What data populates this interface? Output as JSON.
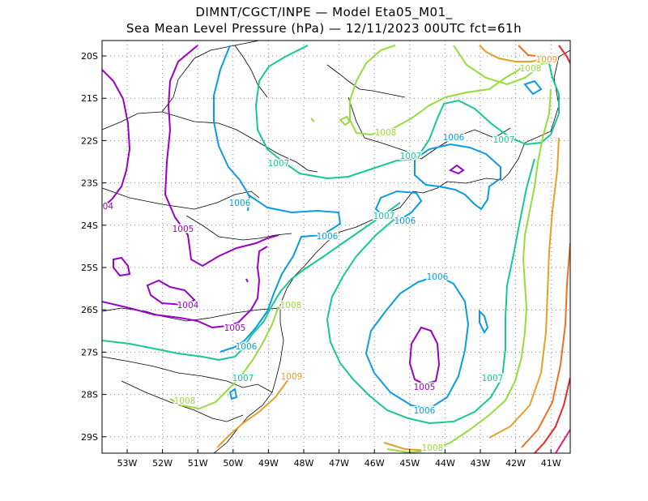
{
  "title": {
    "line1": "DIMNT/CGCT/INPE —  Model Eta05_M01_",
    "line2": "Sea Mean Level Pressure (hPa) — 12/11/2023 00UTC fct=61h"
  },
  "axes": {
    "x_ticks": [
      "53W",
      "52W",
      "51W",
      "50W",
      "49W",
      "48W",
      "47W",
      "46W",
      "45W",
      "44W",
      "43W",
      "42W",
      "41W"
    ],
    "y_ticks": [
      "20S",
      "21S",
      "22S",
      "23S",
      "24S",
      "25S",
      "26S",
      "27S",
      "28S",
      "29S"
    ]
  },
  "contour_colors": {
    "1004": "#9a00c8",
    "1005": "#9a00c8",
    "1006": "#0a9be6",
    "1007": "#16c896",
    "1008": "#96dc3c",
    "1009": "#e6a028",
    "1010": "#f06e28",
    "1011": "#e62828",
    "1012": "#e61e6e"
  },
  "contour_labels": [
    {
      "text": "1009",
      "color_key": "1009"
    },
    {
      "text": "1008",
      "color_key": "1008"
    },
    {
      "text": "1008",
      "color_key": "1008"
    },
    {
      "text": "1007",
      "color_key": "1007"
    },
    {
      "text": "1006",
      "color_key": "1006"
    },
    {
      "text": "1007",
      "color_key": "1007"
    },
    {
      "text": "1007",
      "color_key": "1007"
    },
    {
      "text": "1006",
      "color_key": "1006"
    },
    {
      "text": "004",
      "color_key": "1004"
    },
    {
      "text": "1005",
      "color_key": "1005"
    },
    {
      "text": "1007",
      "color_key": "1007"
    },
    {
      "text": "1006",
      "color_key": "1006"
    },
    {
      "text": "1006",
      "color_key": "1006"
    },
    {
      "text": "1006",
      "color_key": "1006"
    },
    {
      "text": "1008",
      "color_key": "1008"
    },
    {
      "text": "1004",
      "color_key": "1004"
    },
    {
      "text": "1005",
      "color_key": "1005"
    },
    {
      "text": "1006",
      "color_key": "1006"
    },
    {
      "text": "1007",
      "color_key": "1007"
    },
    {
      "text": "1009",
      "color_key": "1009"
    },
    {
      "text": "1005",
      "color_key": "1005"
    },
    {
      "text": "1006",
      "color_key": "1006"
    },
    {
      "text": "1007",
      "color_key": "1007"
    },
    {
      "text": "1008",
      "color_key": "1008"
    },
    {
      "text": "1008",
      "color_key": "1008"
    }
  ]
}
